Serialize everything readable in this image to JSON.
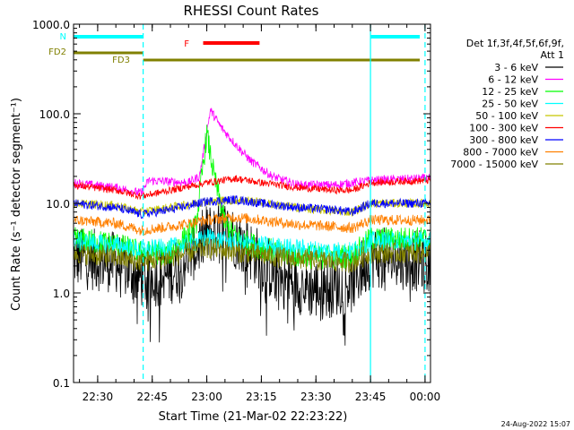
{
  "chart_data": {
    "type": "line",
    "title": "RHESSI Count Rates",
    "xlabel": "Start Time (21-Mar-02 22:23:22)",
    "ylabel": "Count Rate (s⁻¹ detector segment⁻¹)",
    "yscale": "log",
    "ylim": [
      0.1,
      1000
    ],
    "xlim": [
      "22:23:22",
      "00:01:30"
    ],
    "xticks": [
      "22:30",
      "22:45",
      "23:00",
      "23:15",
      "23:30",
      "23:45",
      "00:00"
    ],
    "yticks": [
      "0.1",
      "1.0",
      "10.0",
      "100.0",
      "1000.0"
    ],
    "grid": false,
    "legend_position": "right",
    "legend_title": [
      "Det 1f,3f,4f,5f,6f,9f,",
      "Att 1"
    ],
    "timestamp": "24-Aug-2022 15:07",
    "colors": {
      "3 - 6 keV": "#000000",
      "6 - 12 keV": "#ff00ff",
      "12 - 25 keV": "#00ff00",
      "25 - 50 keV": "#00ffff",
      "50 - 100 keV": "#c8c800",
      "100 - 300 keV": "#ff0000",
      "300 - 800 keV": "#0000ff",
      "800 - 7000 keV": "#ff8000",
      "7000 - 15000 keV": "#808000",
      "night": "#00ffff",
      "flare": "#ff0000",
      "fd": "#808000"
    },
    "series": [
      {
        "name": "3 - 6 keV",
        "x": [
          "22:23",
          "22:35",
          "22:42",
          "22:50",
          "22:58",
          "23:00",
          "23:05",
          "23:10",
          "23:20",
          "23:30",
          "23:40",
          "23:45",
          "23:55",
          "00:00"
        ],
        "y": [
          2.5,
          2.2,
          1.5,
          1.6,
          3.5,
          4.5,
          5.0,
          3.5,
          1.5,
          1.1,
          1.3,
          2.5,
          2.4,
          2.2
        ]
      },
      {
        "name": "6 - 12 keV",
        "x": [
          "22:23",
          "22:35",
          "22:42",
          "22:44",
          "22:55",
          "22:58",
          "23:01",
          "23:04",
          "23:08",
          "23:12",
          "23:18",
          "23:25",
          "23:35",
          "23:45",
          "00:00"
        ],
        "y": [
          17,
          15,
          13,
          18,
          17,
          20,
          110,
          70,
          45,
          30,
          20,
          16,
          16,
          18,
          19
        ]
      },
      {
        "name": "12 - 25 keV",
        "x": [
          "22:23",
          "22:35",
          "22:42",
          "22:50",
          "22:57",
          "23:00",
          "23:02",
          "23:05",
          "23:08",
          "23:12",
          "23:20",
          "23:30",
          "23:40",
          "23:45",
          "00:00"
        ],
        "y": [
          4.0,
          3.5,
          2.8,
          2.8,
          5.5,
          60,
          20,
          6,
          4.2,
          3.5,
          2.8,
          2.5,
          2.6,
          4.0,
          4.0
        ]
      },
      {
        "name": "25 - 50 keV",
        "x": [
          "22:23",
          "22:35",
          "22:42",
          "22:50",
          "22:58",
          "23:00",
          "23:05",
          "23:15",
          "23:30",
          "23:40",
          "23:45",
          "00:00"
        ],
        "y": [
          3.8,
          3.4,
          3.0,
          3.2,
          3.8,
          4.2,
          3.8,
          3.4,
          3.0,
          2.9,
          3.8,
          3.8
        ]
      },
      {
        "name": "50 - 100 keV",
        "x": [
          "22:23",
          "22:35",
          "22:42",
          "22:50",
          "23:00",
          "23:10",
          "23:20",
          "23:30",
          "23:40",
          "23:45",
          "00:00"
        ],
        "y": [
          10,
          9.5,
          8,
          9,
          10.5,
          11,
          9.5,
          8.5,
          8.0,
          10,
          10
        ]
      },
      {
        "name": "100 - 300 keV",
        "x": [
          "22:23",
          "22:35",
          "22:42",
          "22:50",
          "23:00",
          "23:08",
          "23:15",
          "23:25",
          "23:35",
          "23:40",
          "23:45",
          "00:00"
        ],
        "y": [
          16,
          14,
          12,
          14,
          17,
          19,
          17,
          15,
          14,
          14,
          17,
          18
        ]
      },
      {
        "name": "300 - 800 keV",
        "x": [
          "22:23",
          "22:35",
          "22:42",
          "22:50",
          "23:00",
          "23:08",
          "23:15",
          "23:25",
          "23:35",
          "23:40",
          "23:45",
          "00:00"
        ],
        "y": [
          10,
          9,
          7.5,
          8.5,
          10.5,
          11,
          10,
          9,
          8.5,
          8,
          10,
          10
        ]
      },
      {
        "name": "800 - 7000 keV",
        "x": [
          "22:23",
          "22:35",
          "22:42",
          "22:50",
          "23:00",
          "23:08",
          "23:15",
          "23:25",
          "23:35",
          "23:40",
          "23:45",
          "00:00"
        ],
        "y": [
          6.5,
          6,
          5,
          5.5,
          6.5,
          7,
          6.5,
          5.8,
          5.5,
          5.3,
          6.5,
          6.5
        ]
      },
      {
        "name": "7000 - 15000 keV",
        "x": [
          "22:23",
          "22:35",
          "22:42",
          "22:50",
          "23:00",
          "23:05",
          "23:10",
          "23:20",
          "23:30",
          "23:40",
          "23:45",
          "00:00"
        ],
        "y": [
          2.8,
          2.5,
          2.2,
          2.5,
          3.2,
          3.0,
          2.8,
          2.5,
          2.3,
          2.2,
          2.8,
          2.8
        ]
      }
    ],
    "annotations": [
      {
        "label": "N",
        "kind": "night",
        "intervals": [
          [
            "22:23:22",
            "22:42:30"
          ],
          [
            "23:45:00",
            "00:01:30"
          ]
        ],
        "level": "top"
      },
      {
        "label": "FD2",
        "kind": "fd",
        "intervals": [
          [
            "22:23:22",
            "22:42:30"
          ]
        ],
        "level": "fd2"
      },
      {
        "label": "FD3",
        "kind": "fd",
        "intervals": [
          [
            "22:42:30",
            "00:01:30"
          ]
        ],
        "level": "fd3"
      },
      {
        "label": "F",
        "kind": "flare",
        "intervals": [
          [
            "22:59:00",
            "23:14:30"
          ]
        ],
        "level": "flare"
      }
    ],
    "vertical_lines": [
      {
        "time": "22:42:30",
        "style": "dashed"
      },
      {
        "time": "23:45:00",
        "style": "solid"
      },
      {
        "time": "00:00:00",
        "style": "dashed"
      }
    ]
  }
}
